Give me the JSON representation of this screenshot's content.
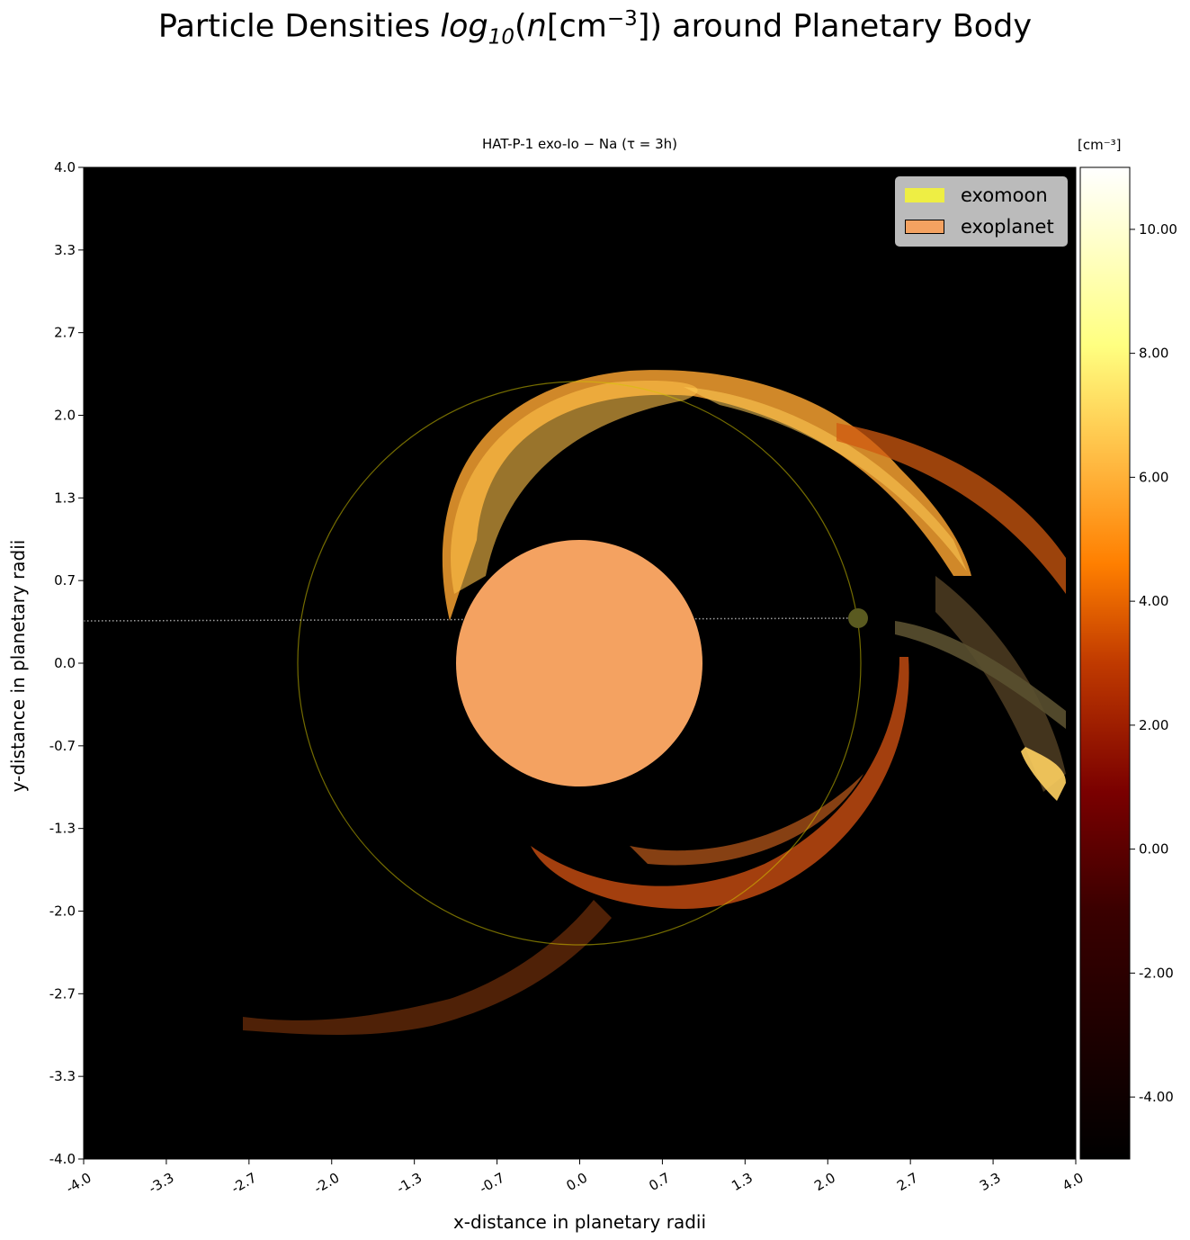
{
  "figure": {
    "suptitle_prefix": "Particle Densities ",
    "suptitle_math": "log",
    "suptitle_sub": "10",
    "suptitle_mid": "(n[cm",
    "suptitle_sup": "−3",
    "suptitle_end": "]) around Planetary Body"
  },
  "chart_data": {
    "type": "scatter",
    "title": "HAT-P-1 exo-Io − Na (τ = 3h)",
    "xlabel": "x-distance in planetary radii",
    "ylabel": "y-distance in planetary radii",
    "xlim": [
      -4.0,
      4.0
    ],
    "ylim": [
      -4.0,
      4.0
    ],
    "grid": false,
    "background_color": "#000000",
    "x_ticks": [
      "-4.0",
      "-3.3",
      "-2.7",
      "-2.0",
      "-1.3",
      "-0.7",
      "0.0",
      "0.7",
      "1.3",
      "2.0",
      "2.7",
      "3.3",
      "4.0"
    ],
    "y_ticks": [
      "-4.0",
      "-3.3",
      "-2.7",
      "-2.0",
      "-1.3",
      "-0.7",
      "0.0",
      "0.7",
      "1.3",
      "2.0",
      "2.7",
      "3.3",
      "4.0"
    ],
    "legend": {
      "placement": "upper right",
      "entries": [
        {
          "label": "exomoon",
          "color": "#eeee44"
        },
        {
          "label": "exoplanet",
          "color": "#f4a261"
        }
      ]
    },
    "bodies": [
      {
        "name": "exoplanet",
        "x": 0.0,
        "y": 0.0,
        "radius": 1.0,
        "color": "#f4a261"
      },
      {
        "name": "exomoon",
        "x": 2.25,
        "y": 0.37,
        "radius": 0.08,
        "color": "#5a5a20"
      }
    ],
    "moon_orbit": {
      "center": [
        0.0,
        0.0
      ],
      "radius": 2.27,
      "color": "#d4c400"
    },
    "colorbar": {
      "unit": "[cm⁻³]",
      "range": [
        -5.0,
        11.0
      ],
      "ticks": [
        "-4.00",
        "-2.00",
        "0.00",
        "2.00",
        "4.00",
        "6.00",
        "8.00",
        "10.00"
      ],
      "tick_values": [
        -4,
        -2,
        0,
        2,
        4,
        6,
        8,
        10
      ],
      "colormap": "afmhot"
    },
    "density_features": [
      {
        "name": "upper sodium torus arc",
        "log_density_approx": 5.5
      },
      {
        "name": "lower torus arc",
        "log_density_approx": 2.0
      },
      {
        "name": "outer trailing tail",
        "log_density_approx": 2.5
      },
      {
        "name": "dispersed lower-left cloud",
        "log_density_approx": 2.0
      }
    ]
  }
}
